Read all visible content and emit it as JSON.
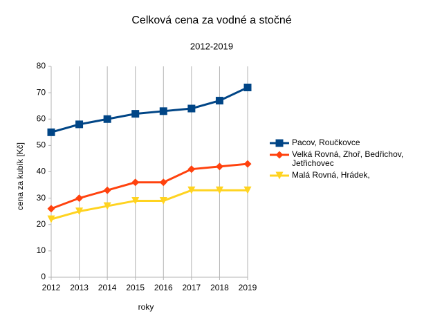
{
  "chart_data": {
    "type": "line",
    "title": "Celková cena za vodné a stočné",
    "subtitle": "2012-2019",
    "x_label": "roky",
    "y_label": "cena za kubík [Kč]",
    "x": [
      2012,
      2013,
      2014,
      2015,
      2016,
      2017,
      2018,
      2019
    ],
    "xlim": [
      2012,
      2019
    ],
    "xticks": [
      2012,
      2013,
      2014,
      2015,
      2016,
      2017,
      2018,
      2019
    ],
    "ylim": [
      0,
      80
    ],
    "yticks": [
      0,
      10,
      20,
      30,
      40,
      50,
      60,
      70,
      80
    ],
    "grid": "x",
    "legend": "right",
    "series": [
      {
        "name": "Pacov, Roučkovce",
        "color": "#004586",
        "marker": "square",
        "values": [
          55,
          58,
          60,
          62,
          63,
          64,
          67,
          72
        ]
      },
      {
        "name": "Velká Rovná, Zhoř, Bedřichov, Jetřichovec",
        "color": "#ff420e",
        "marker": "diamond",
        "values": [
          26,
          30,
          33,
          36,
          36,
          41,
          42,
          43
        ]
      },
      {
        "name": "Malá Rovná, Hrádek,",
        "color": "#ffd320",
        "marker": "triangle-down",
        "values": [
          22,
          25,
          27,
          29,
          29,
          33,
          33,
          33
        ]
      }
    ]
  }
}
